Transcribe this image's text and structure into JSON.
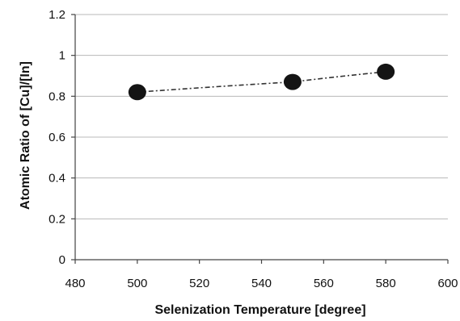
{
  "chart_data": {
    "type": "scatter",
    "title": "",
    "xlabel": "Selenization Temperature [degree]",
    "ylabel": "Atomic Ratio of [Cu]/[In]",
    "xlim": [
      480,
      600
    ],
    "ylim": [
      0,
      1.2
    ],
    "x_ticks": [
      "480",
      "500",
      "520",
      "540",
      "560",
      "580",
      "600"
    ],
    "y_ticks": [
      "0",
      "0.2",
      "0.4",
      "0.6",
      "0.8",
      "1",
      "1.2"
    ],
    "grid": "horizontal",
    "legend": "none",
    "series": [
      {
        "x": [
          500,
          550,
          580
        ],
        "y": [
          0.82,
          0.87,
          0.92
        ],
        "color": "#141414",
        "trendline": "dash-dot"
      }
    ]
  }
}
